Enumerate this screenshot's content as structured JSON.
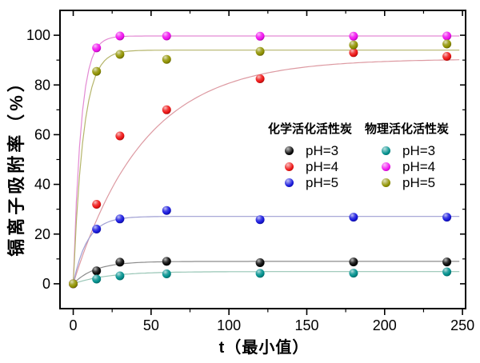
{
  "figure": {
    "background_color": "#ffffff",
    "frame_color": "#000000"
  },
  "chart_data": {
    "type": "scatter",
    "title": "",
    "xlabel": "t（最小值）",
    "ylabel": "镉离子吸附率（%）",
    "xlim": [
      -8.5,
      252
    ],
    "ylim": [
      -10,
      110
    ],
    "x_ticks": [
      0,
      50,
      100,
      150,
      200,
      250
    ],
    "y_ticks": [
      0,
      20,
      40,
      60,
      80,
      100
    ],
    "x_minor_ticks": [
      25,
      75,
      125,
      175,
      225
    ],
    "y_minor_ticks": [
      10,
      30,
      50,
      70,
      90
    ],
    "grid": false,
    "x": [
      0,
      15,
      30,
      60,
      120,
      180,
      240
    ],
    "series": [
      {
        "group": "化学活化活性炭",
        "name": "pH=3",
        "color": "#0a0a0a",
        "line_color": "#8c8c8c",
        "values": [
          0,
          5.2,
          8.7,
          9.0,
          8.5,
          8.8,
          8.8
        ],
        "fit": {
          "ymax": 9.0,
          "k": 14
        }
      },
      {
        "group": "化学活化活性炭",
        "name": "pH=4",
        "color": "#ed1515",
        "line_color": "#dd9aa2",
        "values": [
          0,
          32.0,
          59.5,
          70.0,
          82.5,
          93.0,
          91.5
        ],
        "fit": {
          "ymax": 90.5,
          "k": 45
        }
      },
      {
        "group": "化学活化活性炭",
        "name": "pH=5",
        "color": "#1818dd",
        "line_color": "#9f9fd3",
        "values": [
          0,
          22.0,
          26.1,
          29.5,
          25.8,
          26.8,
          26.8
        ],
        "fit": {
          "ymax": 27.1,
          "k": 9
        }
      },
      {
        "group": "物理活化活性炭",
        "name": "pH=3",
        "color": "#00908d",
        "line_color": "#97c5b5",
        "values": [
          0,
          1.9,
          3.2,
          4.0,
          4.2,
          4.3,
          4.8
        ],
        "fit": {
          "ymax": 4.9,
          "k": 22
        }
      },
      {
        "group": "物理活化活性炭",
        "name": "pH=4",
        "color": "#f011ef",
        "line_color": "#e38ad3",
        "values": [
          0,
          94.9,
          99.7,
          99.7,
          99.6,
          99.6,
          99.7
        ],
        "fit": {
          "ymax": 99.7,
          "k": 5
        }
      },
      {
        "group": "物理活化活性炭",
        "name": "pH=5",
        "color": "#909200",
        "line_color": "#b5b56b",
        "values": [
          0,
          85.5,
          92.3,
          90.3,
          93.5,
          96.1,
          96.5
        ],
        "fit": {
          "ymax": 94.0,
          "k": 6.5
        }
      }
    ],
    "legend": {
      "position": "center-right",
      "groups": [
        {
          "title": "化学活化活性炭",
          "items": [
            {
              "label": "pH=3",
              "color": "#0a0a0a"
            },
            {
              "label": "pH=4",
              "color": "#ed1515"
            },
            {
              "label": "pH=5",
              "color": "#1818dd"
            }
          ]
        },
        {
          "title": "物理活化活性炭",
          "items": [
            {
              "label": "pH=3",
              "color": "#00908d"
            },
            {
              "label": "pH=4",
              "color": "#f011ef"
            },
            {
              "label": "pH=5",
              "color": "#909200"
            }
          ]
        }
      ]
    }
  }
}
